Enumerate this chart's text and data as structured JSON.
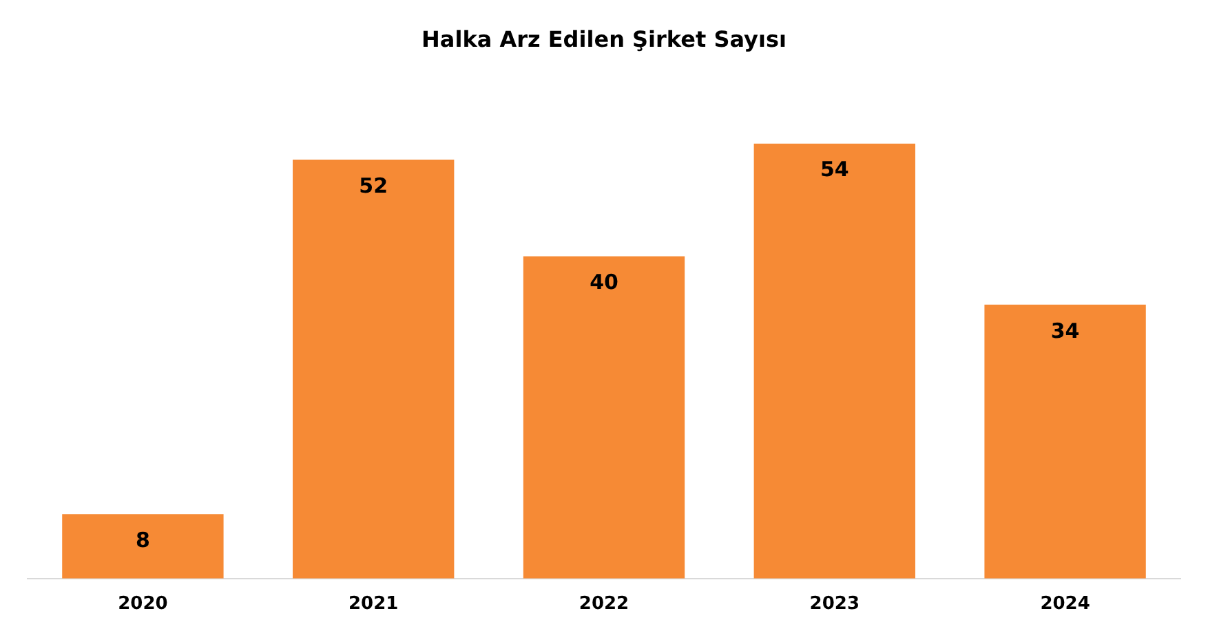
{
  "chart_data": {
    "type": "bar",
    "title": "Halka Arz Edilen Şirket Sayısı",
    "categories": [
      "2020",
      "2021",
      "2022",
      "2023",
      "2024"
    ],
    "values": [
      8,
      52,
      40,
      54,
      34
    ],
    "color": "#f68a35",
    "data_labels": true
  }
}
